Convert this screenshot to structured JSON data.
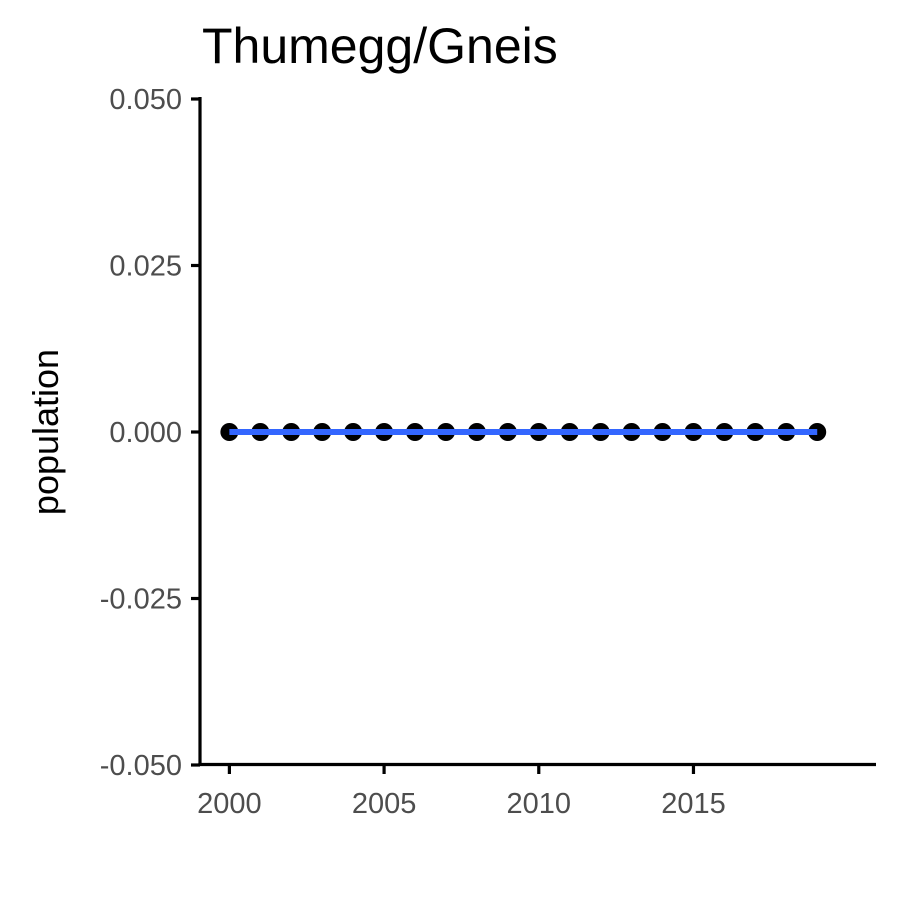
{
  "chart_data": {
    "type": "line",
    "title": "Thumegg/Gneis",
    "xlabel": "",
    "ylabel": "population",
    "x": [
      2000,
      2001,
      2002,
      2003,
      2004,
      2005,
      2006,
      2007,
      2008,
      2009,
      2010,
      2011,
      2012,
      2013,
      2014,
      2015,
      2016,
      2017,
      2018,
      2019
    ],
    "y": [
      0,
      0,
      0,
      0,
      0,
      0,
      0,
      0,
      0,
      0,
      0,
      0,
      0,
      0,
      0,
      0,
      0,
      0,
      0,
      0
    ],
    "xlim": [
      1999.05,
      2020.9
    ],
    "ylim": [
      -0.05,
      0.05
    ],
    "x_ticks": [
      2000,
      2005,
      2010,
      2015
    ],
    "x_tick_labels": [
      "2000",
      "2005",
      "2010",
      "2015"
    ],
    "y_ticks": [
      -0.05,
      -0.025,
      0,
      0.025,
      0.05
    ],
    "y_tick_labels": [
      "-0.050",
      "-0.025",
      "0.000",
      "0.025",
      "0.050"
    ],
    "grid": false,
    "legend": "none",
    "colors": {
      "points": "#000000",
      "line": "#3366ff",
      "axis": "#000000",
      "tick_text": "#4d4d4d"
    }
  }
}
